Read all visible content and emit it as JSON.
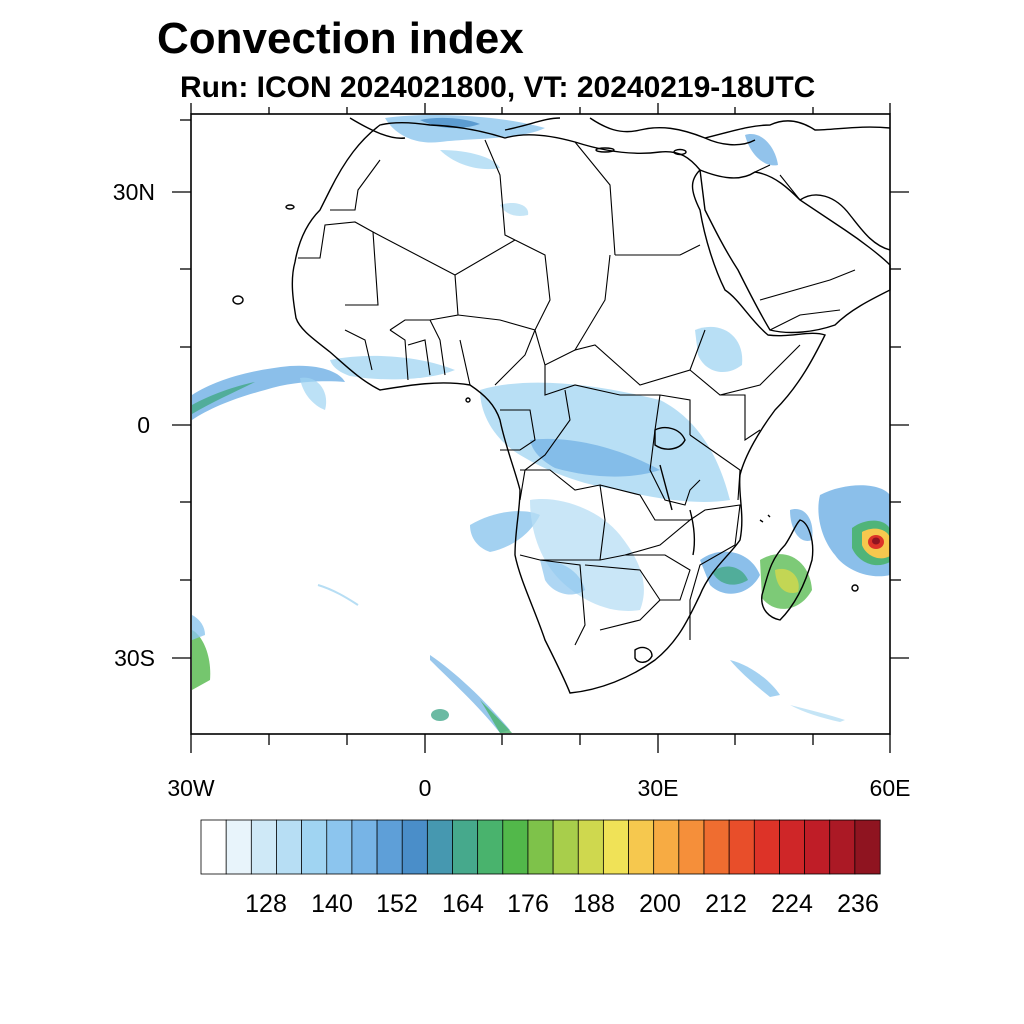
{
  "title": "Convection index",
  "subtitle": "Run: ICON 2024021800,  VT: 20240219-18UTC",
  "axes": {
    "lat_labels": [
      "30N",
      "0",
      "30S"
    ],
    "lon_labels": [
      "30W",
      "0",
      "30E",
      "60E"
    ],
    "lat_values": [
      30,
      0,
      -30
    ],
    "lon_values": [
      -30,
      0,
      30,
      60
    ]
  },
  "colorbar": {
    "tick_labels": [
      "128",
      "140",
      "152",
      "164",
      "176",
      "188",
      "200",
      "212",
      "224",
      "236"
    ],
    "colors": [
      "#ffffff",
      "#e8f4fb",
      "#cfe9f7",
      "#b7def4",
      "#a0d4f2",
      "#8cc5ee",
      "#77b4e6",
      "#5e9fd8",
      "#4a8ec9",
      "#4698b0",
      "#46a98c",
      "#49b36d",
      "#52b84a",
      "#7ec24a",
      "#a8ce4b",
      "#cfd84e",
      "#f0e257",
      "#f6c84e",
      "#f7ab43",
      "#f58f3a",
      "#ef6d30",
      "#e84e2a",
      "#dd3328",
      "#cf2628",
      "#bf1d27",
      "#ab1925",
      "#8f1420"
    ]
  }
}
